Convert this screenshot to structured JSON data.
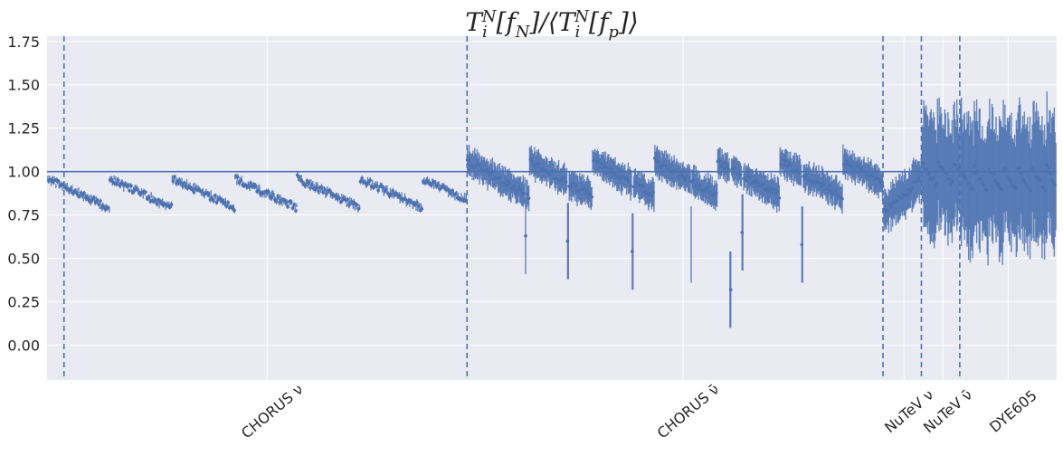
{
  "chart_data": {
    "type": "line",
    "title": "T_i^N[f_N]/⟨T_i^N[f_p]⟩",
    "title_display": {
      "t": "T",
      "sub1": "i",
      "sup1": "N",
      "mid1": "[f",
      "subN": "N",
      "mid2": "]/⟨T",
      "sub2": "i",
      "sup2": "N",
      "mid3": "[f",
      "subp": "p",
      "end": "]⟩"
    },
    "xlabel": "",
    "ylabel": "",
    "ylim": [
      -0.2,
      1.78
    ],
    "yticks": [
      0.0,
      0.25,
      0.5,
      0.75,
      1.0,
      1.25,
      1.5,
      1.75
    ],
    "ytick_labels": [
      "0.00",
      "0.25",
      "0.50",
      "0.75",
      "1.00",
      "1.25",
      "1.50",
      "1.75"
    ],
    "x_range": [
      0,
      2500
    ],
    "reference_line": 1.0,
    "grid": true,
    "legend": "none",
    "colors": {
      "series": "#4c72b0",
      "background": "#eaeaf2",
      "grid": "#ffffff",
      "text": "#262626"
    },
    "datasets": [
      {
        "name": "CHORUS ν",
        "start": 0,
        "end": 1040,
        "label_at": 545,
        "divider_at": 1040
      },
      {
        "name": "CHORUS ν̄",
        "start": 1040,
        "end": 2070,
        "label_at": 1575,
        "divider_at": 2070
      },
      {
        "name": "NuTeV ν",
        "start": 2070,
        "end": 2165,
        "label_at": 2122,
        "divider_at": 2165
      },
      {
        "name": "NuTeV ν̄",
        "start": 2165,
        "end": 2260,
        "label_at": 2218,
        "divider_at": 2260
      },
      {
        "name": "DYE605",
        "start": 2260,
        "end": 2500,
        "label_at": 2380,
        "divider_at": null
      }
    ],
    "extra_dividers": [
      42
    ],
    "series": [
      {
        "name": "",
        "segments": [
          {
            "x_start": 0,
            "x_end": 1040,
            "pattern": "sawtooth",
            "period": 155,
            "high": 0.96,
            "low": 0.79,
            "err": 0.015
          },
          {
            "x_start": 1040,
            "x_end": 2070,
            "pattern": "sawtooth",
            "period": 155,
            "high": 1.06,
            "low": 0.86,
            "err": 0.07,
            "dips": [
              {
                "x": 1185,
                "y": 0.63
              },
              {
                "x": 1290,
                "y": 0.6
              },
              {
                "x": 1450,
                "y": 0.54
              },
              {
                "x": 1595,
                "y": 0.58
              },
              {
                "x": 1692,
                "y": 0.32
              },
              {
                "x": 1722,
                "y": 0.65
              },
              {
                "x": 1870,
                "y": 0.58
              }
            ]
          },
          {
            "x_start": 2070,
            "x_end": 2165,
            "pattern": "ramp",
            "high": 0.96,
            "low": 0.76,
            "err": 0.11
          },
          {
            "x_start": 2165,
            "x_end": 2260,
            "pattern": "sawtooth",
            "period": 40,
            "high": 1.05,
            "low": 0.92,
            "err": 0.3
          },
          {
            "x_start": 2260,
            "x_end": 2500,
            "pattern": "sawtooth",
            "period": 36,
            "high": 1.02,
            "low": 0.87,
            "err": 0.33
          }
        ]
      }
    ]
  }
}
